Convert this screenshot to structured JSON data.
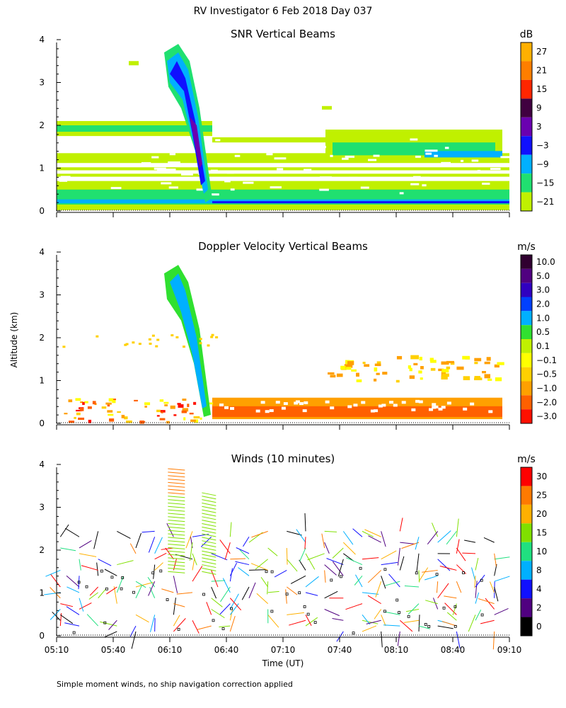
{
  "title": "RV Investigator    6 Feb 2018 Day 037",
  "ylabel": "Altitude (km)",
  "xlabel": "Time (UT)",
  "footnote": "Simple moment winds, no ship navigation correction applied",
  "chart_data": [
    {
      "type": "heatmap",
      "title": "SNR Vertical Beams",
      "units": "dB",
      "x_range_hours": [
        5.1667,
        9.1667
      ],
      "ylim": [
        0,
        4
      ],
      "yticks": [
        "0",
        "1",
        "2",
        "3",
        "4"
      ],
      "colorbar": {
        "labels": [
          "27",
          "21",
          "15",
          "9",
          "3",
          "−3",
          "−9",
          "−15",
          "−21"
        ],
        "colors": [
          "#ffb000",
          "#ff7e00",
          "#ff2600",
          "#400040",
          "#6a00b0",
          "#1010ff",
          "#00b0ff",
          "#20e070",
          "#c0f000"
        ]
      },
      "features": {
        "plume_top_km": 3.8,
        "plume_time": "06:10",
        "low_layer_top_km": 0.7,
        "upper_layer_km": [
          1.2,
          1.8
        ]
      }
    },
    {
      "type": "heatmap",
      "title": "Doppler Velocity Vertical Beams",
      "units": "m/s",
      "x_range_hours": [
        5.1667,
        9.1667
      ],
      "ylim": [
        0,
        4
      ],
      "yticks": [
        "0",
        "1",
        "2",
        "3",
        "4"
      ],
      "colorbar": {
        "labels": [
          "10.0",
          "5.0",
          "3.0",
          "2.0",
          "1.0",
          "0.5",
          "0.1",
          "−0.1",
          "−0.5",
          "−1.0",
          "−2.0",
          "−3.0"
        ],
        "colors": [
          "#300030",
          "#500080",
          "#3000c0",
          "#0040ff",
          "#00b0ff",
          "#30e030",
          "#c0f000",
          "#ffff00",
          "#ffd000",
          "#ffa000",
          "#ff6000",
          "#ff1000"
        ]
      },
      "features": {
        "plume_top_km": 3.7,
        "surface_layer_top_km": 0.6,
        "descending_layer_km": [
          1.0,
          1.5
        ]
      }
    },
    {
      "type": "scatter",
      "title": "Winds (10 minutes)",
      "units": "m/s",
      "x_range_hours": [
        5.1667,
        9.1667
      ],
      "ylim": [
        0,
        4
      ],
      "yticks": [
        "0",
        "1",
        "2",
        "3",
        "4"
      ],
      "colorbar": {
        "labels": [
          "30",
          "25",
          "20",
          "15",
          "10",
          "8",
          "4",
          "2",
          "0"
        ],
        "colors": [
          "#ff0000",
          "#ff7a00",
          "#ffb000",
          "#80e000",
          "#20e080",
          "#00b0ff",
          "#1010ff",
          "#500080",
          "#000000"
        ]
      }
    }
  ],
  "x_ticks": [
    "05:10",
    "05:40",
    "06:10",
    "06:40",
    "07:10",
    "07:40",
    "08:10",
    "08:40",
    "09:10"
  ]
}
